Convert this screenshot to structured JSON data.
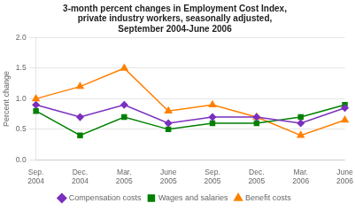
{
  "chart_data": {
    "type": "line",
    "title": "3-month percent changes in Employment Cost Index,\nprivate industry workers, seasonally adjusted,\nSeptember 2004-June 2006",
    "ylabel": "Percent change",
    "categories": [
      "Sep.\n2004",
      "Dec.\n2004",
      "Mar.\n2005",
      "June\n2005",
      "Sep.\n2005",
      "Dec.\n2005",
      "Mar.\n2006",
      "June\n2006"
    ],
    "series": [
      {
        "name": "Compensation costs",
        "color": "#7B2FBE",
        "marker": "diamond",
        "values": [
          0.9,
          0.7,
          0.9,
          0.6,
          0.7,
          0.7,
          0.6,
          0.85
        ]
      },
      {
        "name": "Wages and salaries",
        "color": "#008000",
        "marker": "square",
        "values": [
          0.8,
          0.4,
          0.7,
          0.5,
          0.6,
          0.6,
          0.7,
          0.9
        ]
      },
      {
        "name": "Benefit costs",
        "color": "#FF8000",
        "marker": "triangle",
        "values": [
          1.0,
          1.2,
          1.5,
          0.8,
          0.9,
          0.7,
          0.4,
          0.65
        ]
      }
    ],
    "ylim": [
      0.0,
      2.0
    ],
    "yticks": [
      {
        "value": 0.0,
        "label": "0.0"
      },
      0.5,
      {
        "value": 1.0,
        "label": "1.0"
      },
      1.5,
      {
        "value": 2.0,
        "label": "2.0"
      }
    ],
    "grid": true,
    "legend": "bottom"
  }
}
